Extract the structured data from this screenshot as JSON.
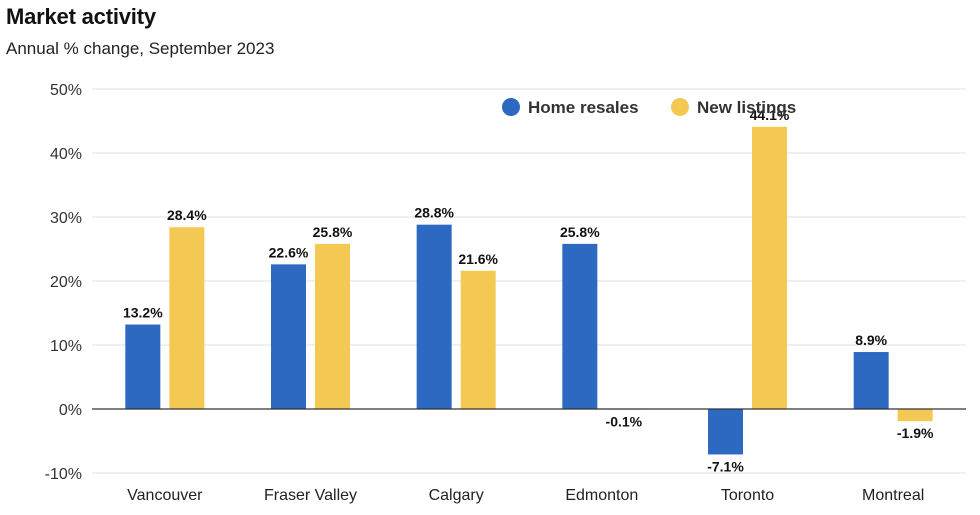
{
  "title": "Market activity",
  "subtitle": "Annual % change, September 2023",
  "colors": {
    "home_resales": "#2d69c1",
    "new_listings": "#f4c953"
  },
  "chart_data": {
    "type": "bar",
    "categories": [
      "Vancouver",
      "Fraser Valley",
      "Calgary",
      "Edmonton",
      "Toronto",
      "Montreal"
    ],
    "series": [
      {
        "name": "Home resales",
        "values": [
          13.2,
          22.6,
          28.8,
          25.8,
          -7.1,
          8.9
        ],
        "labels": [
          "13.2%",
          "22.6%",
          "28.8%",
          "25.8%",
          "-7.1%",
          "8.9%"
        ]
      },
      {
        "name": "New listings",
        "values": [
          28.4,
          25.8,
          21.6,
          -0.1,
          44.1,
          -1.9
        ],
        "labels": [
          "28.4%",
          "25.8%",
          "21.6%",
          "-0.1%",
          "44.1%",
          "-1.9%"
        ]
      }
    ],
    "ylim": [
      -10,
      50
    ],
    "yticks": [
      50,
      40,
      30,
      20,
      10,
      0,
      -10
    ],
    "ytick_labels": [
      "50%",
      "40%",
      "30%",
      "20%",
      "10%",
      "0%",
      "-10%"
    ],
    "grid": true,
    "legend_position": "top-center"
  }
}
